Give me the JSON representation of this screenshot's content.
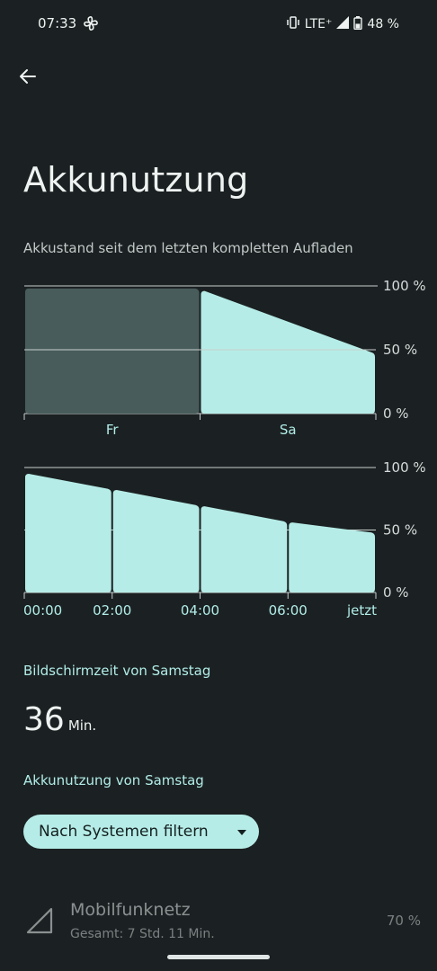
{
  "status": {
    "time": "07:33",
    "network": "LTE⁺",
    "battery_pct": "48 %",
    "battery_level": 48
  },
  "page": {
    "title": "Akkunutzung",
    "subtitle": "Akkustand seit dem letzten kompletten Aufladen"
  },
  "colors": {
    "bg": "#1b2122",
    "bar": "#b6ece7",
    "bar_dim": "#495c5c",
    "accent_text": "#b1ece8"
  },
  "chart_data": [
    {
      "type": "area",
      "categories": [
        "Fr",
        "Sa"
      ],
      "y_tick_labels": [
        "100 %",
        "50 %",
        "0 %"
      ],
      "ylim": [
        0,
        100
      ],
      "series": [
        {
          "values": [
            98,
            98
          ]
        },
        {
          "values": [
            96,
            48
          ]
        }
      ],
      "highlighted": "Sa"
    },
    {
      "type": "bar",
      "x_tick_labels": [
        "00:00",
        "02:00",
        "04:00",
        "06:00",
        "jetzt"
      ],
      "y_tick_labels": [
        "100 %",
        "50 %",
        "0 %"
      ],
      "ylim": [
        0,
        100
      ],
      "segments": [
        {
          "start": 95,
          "end": 83
        },
        {
          "start": 82,
          "end": 70
        },
        {
          "start": 69,
          "end": 57
        },
        {
          "start": 56,
          "end": 48
        }
      ]
    }
  ],
  "screen_time": {
    "heading": "Bildschirmzeit von Samstag",
    "value": "36",
    "unit": "Min."
  },
  "usage": {
    "heading": "Akkunutzung von Samstag",
    "filter_label": "Nach Systemen filtern",
    "items": [
      {
        "name": "Mobilfunknetz",
        "detail": "Gesamt: 7 Std. 11 Min.",
        "percent": "70 %",
        "icon": "cellular-signal-icon"
      }
    ]
  }
}
